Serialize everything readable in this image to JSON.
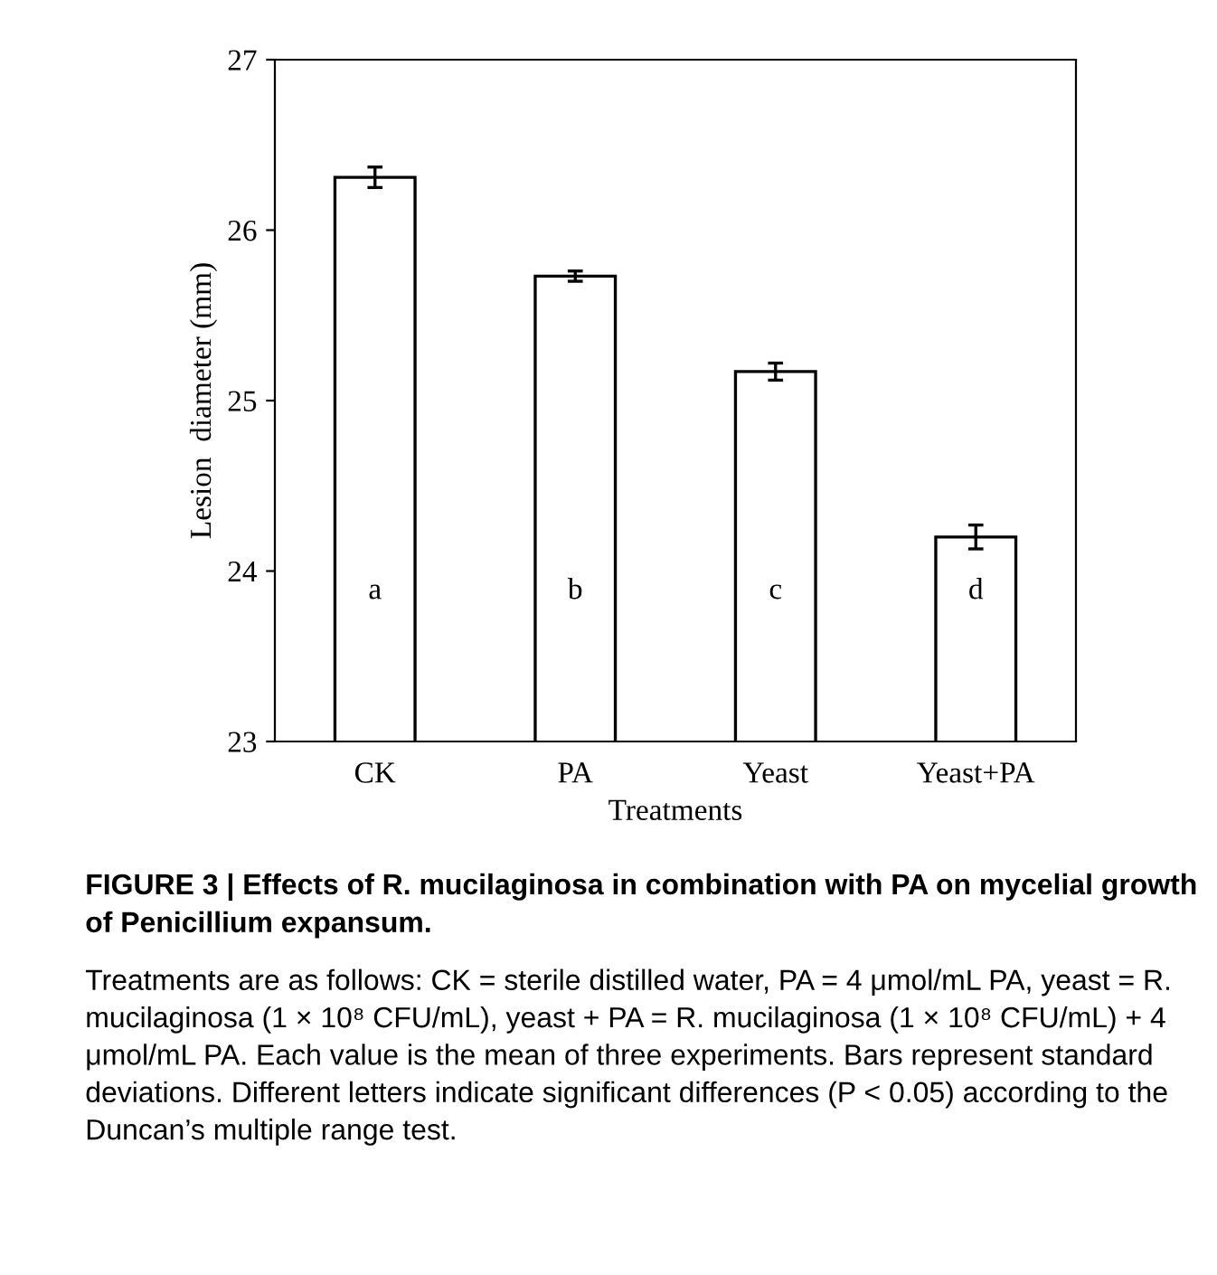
{
  "chart_data": {
    "type": "bar",
    "xlabel": "Treatments",
    "ylabel": "Lesion  diameter (mm)",
    "categories": [
      "CK",
      "PA",
      "Yeast",
      "Yeast+PA"
    ],
    "values": [
      26.31,
      25.73,
      25.17,
      24.2
    ],
    "errors": [
      0.06,
      0.03,
      0.05,
      0.07
    ],
    "color": "#ffffff",
    "ylim": [
      23,
      27
    ],
    "yticks": [
      23,
      24,
      25,
      26,
      27
    ],
    "grid": false,
    "legend": false,
    "annotations": [
      "a",
      "b",
      "c",
      "d",
      "FIGURE 3 | Effects of R. mucilaginosa in combination with PA on mycelial growth of Penicillium expansum.",
      "Treatments are as follows: CK = sterile distilled water, PA = 4 μmol/mL PA, yeast = R. mucilaginosa (1 × 10⁸ CFU/mL), yeast + PA = R. mucilaginosa (1 × 10⁸ CFU/mL) + 4 μmol/mL PA. Each value is the mean of three experiments. Bars represent standard deviations. Different letters indicate significant differences (P < 0.05) according to the Duncan’s multiple range test."
    ]
  }
}
